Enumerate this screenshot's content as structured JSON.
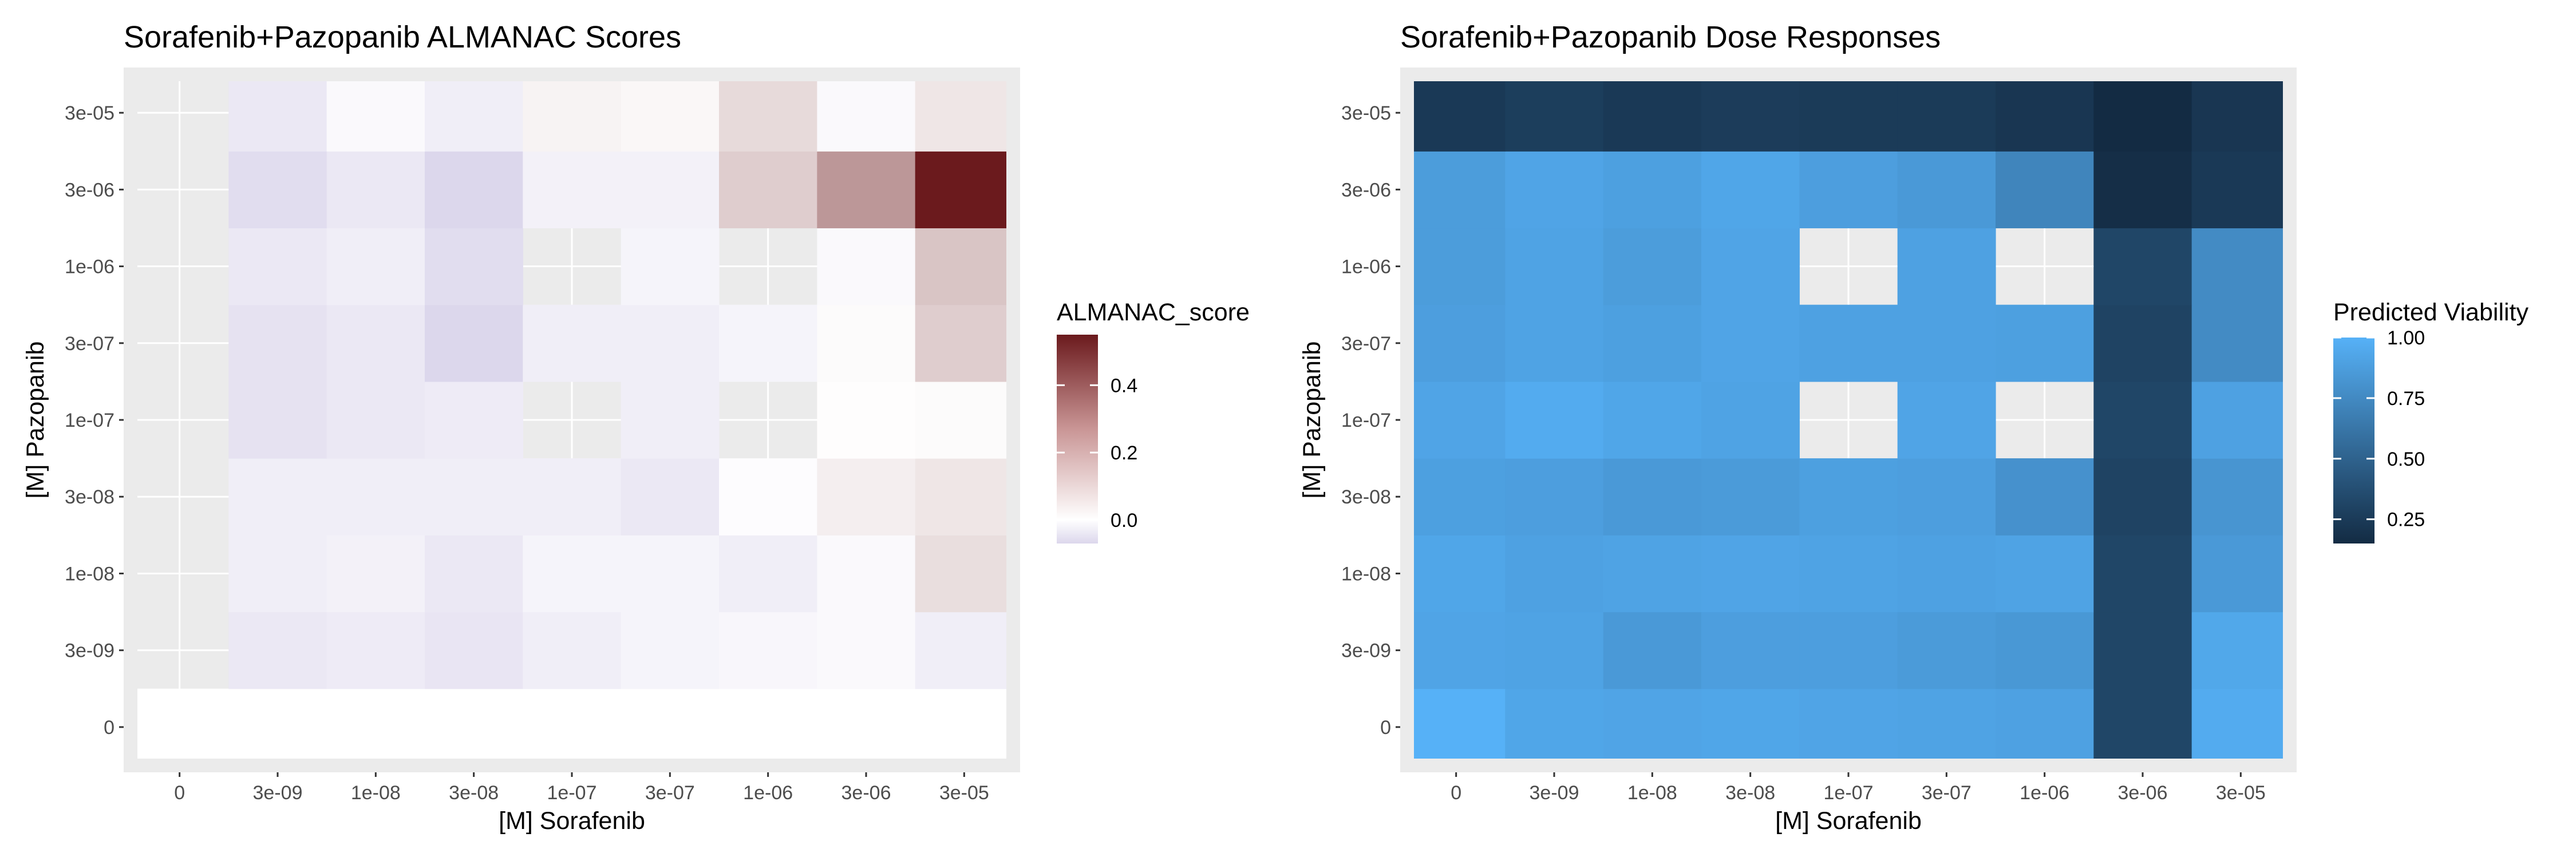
{
  "figure": {
    "background": "#ffffff",
    "panel_background": "#ebebeb",
    "grid_color": "#ffffff",
    "na_color": "#e5e5e5"
  },
  "chart_data": [
    {
      "type": "heatmap",
      "title": "Sorafenib+Pazopanib ALMANAC Scores",
      "xlabel": "[M] Sorafenib",
      "ylabel": "[M] Pazopanib",
      "x_categories": [
        "0",
        "3e-09",
        "1e-08",
        "3e-08",
        "1e-07",
        "3e-07",
        "1e-06",
        "3e-06",
        "3e-05"
      ],
      "y_categories": [
        "0",
        "3e-09",
        "1e-08",
        "3e-08",
        "1e-07",
        "3e-07",
        "1e-06",
        "3e-06",
        "3e-05"
      ],
      "legend": {
        "title": "ALMANAC_score",
        "breaks": [
          0.0,
          0.2,
          0.4
        ],
        "break_labels": [
          "0.0",
          "0.2",
          "0.4"
        ],
        "range": [
          -0.07,
          0.55
        ],
        "colors": {
          "low": "#dcd7ec",
          "mid": "#ffffff",
          "high": "#6b1a1d"
        },
        "position": "right"
      },
      "values": [
        [
          0,
          0,
          0,
          0,
          0,
          0,
          0,
          0,
          0
        ],
        [
          null,
          -0.04,
          -0.035,
          -0.045,
          -0.03,
          -0.02,
          -0.015,
          -0.01,
          -0.03
        ],
        [
          null,
          -0.03,
          -0.025,
          -0.04,
          -0.02,
          -0.02,
          -0.03,
          -0.01,
          0.08
        ],
        [
          null,
          -0.03,
          -0.03,
          -0.03,
          -0.03,
          -0.04,
          -0.005,
          0.04,
          0.06
        ],
        [
          null,
          -0.05,
          -0.04,
          -0.035,
          null,
          -0.03,
          null,
          0.005,
          0.01
        ],
        [
          null,
          -0.05,
          -0.04,
          -0.07,
          -0.03,
          -0.03,
          -0.02,
          0.01,
          0.12
        ],
        [
          null,
          -0.04,
          -0.03,
          -0.06,
          null,
          -0.02,
          null,
          -0.01,
          0.14
        ],
        [
          null,
          -0.06,
          -0.04,
          -0.07,
          -0.025,
          -0.025,
          0.12,
          0.25,
          0.55
        ],
        [
          null,
          -0.04,
          -0.01,
          -0.03,
          0.03,
          0.02,
          0.09,
          -0.01,
          0.06
        ]
      ]
    },
    {
      "type": "heatmap",
      "title": "Sorafenib+Pazopanib Dose Responses",
      "xlabel": "[M] Sorafenib",
      "ylabel": "[M] Pazopanib",
      "x_categories": [
        "0",
        "3e-09",
        "1e-08",
        "3e-08",
        "1e-07",
        "3e-07",
        "1e-06",
        "3e-06",
        "3e-05"
      ],
      "y_categories": [
        "0",
        "3e-09",
        "1e-08",
        "3e-08",
        "1e-07",
        "3e-07",
        "1e-06",
        "3e-06",
        "3e-05"
      ],
      "legend": {
        "title": "Predicted Viability",
        "breaks": [
          0.25,
          0.5,
          0.75,
          1.0
        ],
        "break_labels": [
          "0.25",
          "0.50",
          "0.75",
          "1.00"
        ],
        "range": [
          0.15,
          1.0
        ],
        "colors": {
          "low": "#132b43",
          "high": "#56b1f7"
        },
        "position": "right"
      },
      "values": [
        [
          1.0,
          0.93,
          0.92,
          0.93,
          0.92,
          0.91,
          0.9,
          0.32,
          0.96
        ],
        [
          0.92,
          0.91,
          0.85,
          0.88,
          0.88,
          0.86,
          0.84,
          0.32,
          0.94
        ],
        [
          0.93,
          0.9,
          0.91,
          0.92,
          0.91,
          0.9,
          0.91,
          0.32,
          0.85
        ],
        [
          0.89,
          0.88,
          0.85,
          0.86,
          0.89,
          0.88,
          0.8,
          0.3,
          0.82
        ],
        [
          0.92,
          0.96,
          0.93,
          0.91,
          null,
          0.92,
          null,
          0.32,
          0.9
        ],
        [
          0.88,
          0.91,
          0.89,
          0.92,
          0.9,
          0.9,
          0.89,
          0.3,
          0.76
        ],
        [
          0.87,
          0.91,
          0.87,
          0.92,
          null,
          0.9,
          null,
          0.32,
          0.76
        ],
        [
          0.87,
          0.92,
          0.89,
          0.93,
          0.88,
          0.85,
          0.72,
          0.17,
          0.24
        ],
        [
          0.24,
          0.27,
          0.24,
          0.26,
          0.25,
          0.25,
          0.22,
          0.15,
          0.22
        ]
      ]
    }
  ]
}
